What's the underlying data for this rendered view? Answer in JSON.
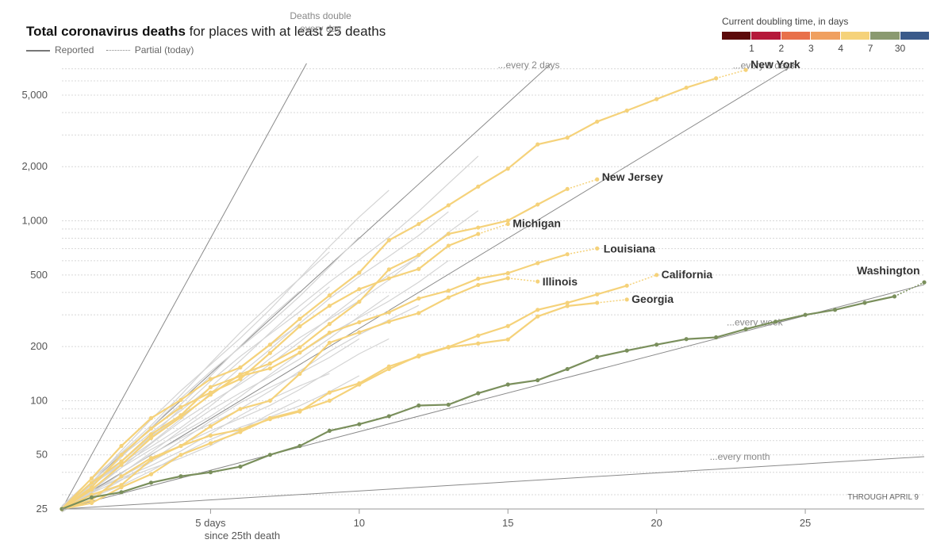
{
  "title_bold": "Total coronavirus deaths",
  "title_rest": " for places with at least 25 deaths",
  "legend": {
    "reported": "Reported",
    "partial": "Partial (today)"
  },
  "doubling_legend": {
    "title": "Current doubling time, in days",
    "colors": [
      "#5c0a0a",
      "#b5183a",
      "#e8704a",
      "#f0a060",
      "#f5d27a",
      "#8a9a70",
      "#3a5a8a"
    ],
    "ticks": [
      "1",
      "2",
      "3",
      "4",
      "7",
      "30"
    ]
  },
  "footnote": "THROUGH APRIL 9",
  "chart_data": {
    "type": "line",
    "y_scale": "log",
    "xlim": [
      0,
      29
    ],
    "ylim": [
      25,
      7500
    ],
    "x_ticks": [
      {
        "value": 5,
        "label": "5 days"
      },
      {
        "value": 10,
        "label": "10"
      },
      {
        "value": 15,
        "label": "15"
      },
      {
        "value": 20,
        "label": "20"
      },
      {
        "value": 25,
        "label": "25"
      }
    ],
    "x_tick_sub": "since 25th death",
    "y_ticks": [
      {
        "value": 25,
        "label": "25"
      },
      {
        "value": 50,
        "label": "50"
      },
      {
        "value": 100,
        "label": "100"
      },
      {
        "value": 200,
        "label": "200"
      },
      {
        "value": 500,
        "label": "500"
      },
      {
        "value": 1000,
        "label": "1,000"
      },
      {
        "value": 2000,
        "label": "2,000"
      },
      {
        "value": 5000,
        "label": "5,000"
      }
    ],
    "reference_lines": [
      {
        "days": 1,
        "label": [
          "Deaths double",
          "every day"
        ]
      },
      {
        "days": 2,
        "label": [
          "...every 2 days"
        ]
      },
      {
        "days": 3,
        "label": [
          "...every 3 days"
        ]
      },
      {
        "days": 7,
        "label": [
          "...every week"
        ]
      },
      {
        "days": 30,
        "label": [
          "...every month"
        ]
      }
    ],
    "series": [
      {
        "name": "New York",
        "color": "#f5d27a",
        "values": [
          25,
          37,
          56,
          80,
          101,
          132,
          153,
          205,
          285,
          385,
          515,
          780,
          960,
          1220,
          1550,
          1950,
          2660,
          2900,
          3560,
          4100,
          4750,
          5500,
          6200,
          6900
        ]
      },
      {
        "name": "New Jersey",
        "color": "#f5d27a",
        "values": [
          25,
          32,
          44,
          62,
          81,
          108,
          140,
          161,
          198,
          267,
          355,
          537,
          646,
          846,
          917,
          1003,
          1232,
          1504,
          1700
        ]
      },
      {
        "name": "Michigan",
        "color": "#f5d27a",
        "values": [
          25,
          33,
          50,
          70,
          92,
          111,
          132,
          184,
          259,
          337,
          417,
          479,
          540,
          727,
          845,
          960
        ]
      },
      {
        "name": "Louisiana",
        "color": "#f5d27a",
        "values": [
          25,
          35,
          46,
          65,
          83,
          119,
          137,
          151,
          185,
          239,
          273,
          310,
          370,
          409,
          477,
          512,
          582,
          652,
          702
        ]
      },
      {
        "name": "California",
        "color": "#f5d27a",
        "values": [
          25,
          27,
          33,
          39,
          50,
          58,
          67,
          80,
          88,
          100,
          123,
          150,
          178,
          199,
          230,
          260,
          320,
          350,
          390,
          436,
          500
        ]
      },
      {
        "name": "Illinois",
        "color": "#f5d27a",
        "values": [
          25,
          30,
          34,
          47,
          56,
          72,
          90,
          100,
          141,
          210,
          240,
          275,
          307,
          375,
          440,
          480,
          460
        ]
      },
      {
        "name": "Georgia",
        "color": "#f5d27a",
        "values": [
          25,
          28,
          38,
          48,
          56,
          64,
          69,
          79,
          87,
          111,
          125,
          155,
          176,
          198,
          208,
          219,
          294,
          336,
          350,
          365
        ]
      },
      {
        "name": "Washington",
        "color": "#7a8f5c",
        "values": [
          25,
          29,
          31,
          35,
          38,
          40,
          43,
          50,
          56,
          68,
          74,
          82,
          94,
          95,
          110,
          123,
          130,
          150,
          175,
          190,
          205,
          220,
          225,
          250,
          275,
          300,
          320,
          350,
          380,
          455
        ]
      }
    ],
    "other_places_count": 18
  }
}
